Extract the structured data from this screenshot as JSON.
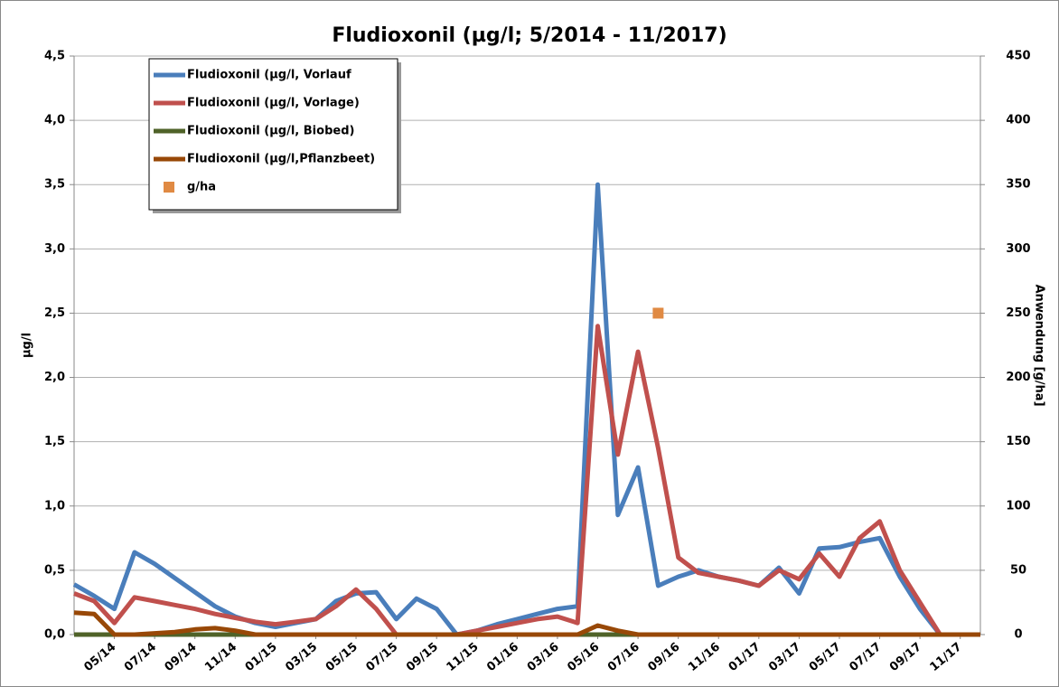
{
  "chart_data": {
    "type": "line",
    "title": "Fludioxonil (µg/l; 5/2014 - 11/2017)",
    "ylabel": "µg/l",
    "y2label": "Anwendung [g/ha]",
    "x": [
      "2014-03",
      "2014-04",
      "2014-05",
      "2014-06",
      "2014-07",
      "2014-08",
      "2014-09",
      "2014-10",
      "2014-11",
      "2014-12",
      "2015-01",
      "2015-02",
      "2015-03",
      "2015-04",
      "2015-05",
      "2015-06",
      "2015-07",
      "2015-08",
      "2015-09",
      "2015-10",
      "2015-11",
      "2015-12",
      "2016-01",
      "2016-02",
      "2016-03",
      "2016-04",
      "2016-05",
      "2016-06",
      "2016-07",
      "2016-08",
      "2016-09",
      "2016-10",
      "2016-11",
      "2016-12",
      "2017-01",
      "2017-02",
      "2017-03",
      "2017-04",
      "2017-05",
      "2017-06",
      "2017-07",
      "2017-08",
      "2017-09",
      "2017-10",
      "2017-11",
      "2017-12"
    ],
    "xlim": [
      "2014-03",
      "2017-12"
    ],
    "xticks": [
      {
        "value": "2014-05",
        "label": "05/14"
      },
      {
        "value": "2014-07",
        "label": "07/14"
      },
      {
        "value": "2014-09",
        "label": "09/14"
      },
      {
        "value": "2014-11",
        "label": "11/14"
      },
      {
        "value": "2015-01",
        "label": "01/15"
      },
      {
        "value": "2015-03",
        "label": "03/15"
      },
      {
        "value": "2015-05",
        "label": "05/15"
      },
      {
        "value": "2015-07",
        "label": "07/15"
      },
      {
        "value": "2015-09",
        "label": "09/15"
      },
      {
        "value": "2015-11",
        "label": "11/15"
      },
      {
        "value": "2016-01",
        "label": "01/16"
      },
      {
        "value": "2016-03",
        "label": "03/16"
      },
      {
        "value": "2016-05",
        "label": "05/16"
      },
      {
        "value": "2016-07",
        "label": "07/16"
      },
      {
        "value": "2016-09",
        "label": "09/16"
      },
      {
        "value": "2016-11",
        "label": "11/16"
      },
      {
        "value": "2017-01",
        "label": "01/17"
      },
      {
        "value": "2017-03",
        "label": "03/17"
      },
      {
        "value": "2017-05",
        "label": "05/17"
      },
      {
        "value": "2017-07",
        "label": "07/17"
      },
      {
        "value": "2017-09",
        "label": "09/17"
      },
      {
        "value": "2017-11",
        "label": "11/17"
      }
    ],
    "ylim": [
      0,
      4.5
    ],
    "yticks": [
      {
        "value": 0,
        "label": "0,0"
      },
      {
        "value": 0.5,
        "label": "0,5"
      },
      {
        "value": 1,
        "label": "1,0"
      },
      {
        "value": 1.5,
        "label": "1,5"
      },
      {
        "value": 2,
        "label": "2,0"
      },
      {
        "value": 2.5,
        "label": "2,5"
      },
      {
        "value": 3,
        "label": "3,0"
      },
      {
        "value": 3.5,
        "label": "3,5"
      },
      {
        "value": 4,
        "label": "4,0"
      },
      {
        "value": 4.5,
        "label": "4,5"
      }
    ],
    "y2lim": [
      0,
      450
    ],
    "y2ticks": [
      0,
      50,
      100,
      150,
      200,
      250,
      300,
      350,
      400,
      450
    ],
    "grid": true,
    "legend": "upper left",
    "series": [
      {
        "name": "Fludioxonil (µg/l, Vorlauf",
        "color": "#4a7ebb",
        "values": [
          0.39,
          0.3,
          0.2,
          0.64,
          0.55,
          0.44,
          0.33,
          0.22,
          0.14,
          0.09,
          0.06,
          0.09,
          0.12,
          0.26,
          0.32,
          0.33,
          0.12,
          0.28,
          0.2,
          0,
          0.03,
          0.08,
          0.12,
          0.16,
          0.2,
          0.22,
          3.5,
          0.93,
          1.3,
          0.38,
          0.45,
          0.5,
          0.45,
          0.42,
          0.38,
          0.52,
          0.32,
          0.67,
          0.68,
          0.72,
          0.75,
          0.45,
          0.2,
          0,
          0,
          0
        ]
      },
      {
        "name": "Fludioxonil (µg/l, Vorlage)",
        "color": "#c0504d",
        "values": [
          0.32,
          0.26,
          0.09,
          0.29,
          0.26,
          0.23,
          0.2,
          0.16,
          0.13,
          0.1,
          0.08,
          0.1,
          0.12,
          0.22,
          0.35,
          0.2,
          0,
          0,
          0,
          0,
          0.03,
          0.06,
          0.09,
          0.12,
          0.14,
          0.09,
          2.4,
          1.4,
          2.2,
          1.45,
          0.6,
          0.48,
          0.45,
          0.42,
          0.38,
          0.5,
          0.43,
          0.63,
          0.45,
          0.75,
          0.88,
          0.5,
          0.25,
          0,
          0,
          0
        ]
      },
      {
        "name": "Fludioxonil (µg/l, Biobed)",
        "color": "#4f6228",
        "values": [
          0,
          0,
          0,
          0,
          0,
          0,
          0,
          0,
          0,
          0,
          0,
          0,
          0,
          0,
          0,
          0,
          0,
          0,
          0,
          0,
          0,
          0,
          0,
          0,
          0,
          0,
          0,
          0,
          0,
          0,
          0,
          0,
          0,
          0,
          0,
          0,
          0,
          0,
          0,
          0,
          0,
          0,
          0,
          0,
          0,
          0
        ]
      },
      {
        "name": "Fludioxonil (µg/l,Pflanzbeet)",
        "color": "#984807",
        "values": [
          0.17,
          0.16,
          0,
          0,
          0.01,
          0.02,
          0.04,
          0.05,
          0.03,
          0,
          0,
          0,
          0,
          0,
          0,
          0,
          0,
          0,
          0,
          0,
          0,
          0,
          0,
          0,
          0,
          0,
          0.07,
          0.03,
          0,
          0,
          0,
          0,
          0,
          0,
          0,
          0,
          0,
          0,
          0,
          0,
          0,
          0,
          0,
          0,
          0,
          0
        ]
      },
      {
        "name": "g/ha",
        "color": "#e08a43",
        "axis": "y2",
        "marker": "square",
        "values": [
          null,
          null,
          null,
          null,
          null,
          null,
          null,
          null,
          null,
          null,
          null,
          null,
          null,
          null,
          null,
          null,
          null,
          null,
          null,
          null,
          null,
          null,
          null,
          null,
          null,
          null,
          null,
          null,
          null,
          250,
          null,
          null,
          null,
          null,
          null,
          null,
          null,
          null,
          null,
          null,
          null,
          null,
          null,
          null,
          null,
          null
        ]
      }
    ]
  }
}
